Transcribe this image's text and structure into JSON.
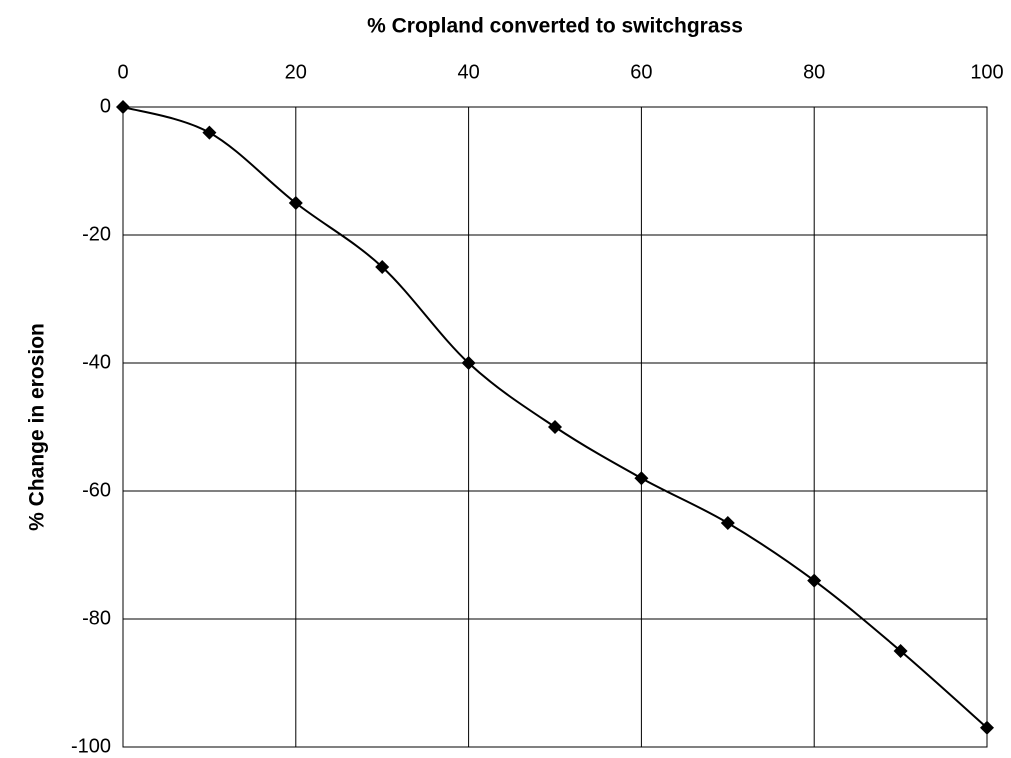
{
  "chart_data": {
    "type": "line",
    "xlabel": "% Cropland converted to switchgrass",
    "ylabel": "% Change in erosion",
    "x": [
      0,
      10,
      20,
      30,
      40,
      50,
      60,
      70,
      80,
      90,
      100
    ],
    "values": [
      0,
      -4,
      -15,
      -25,
      -40,
      -50,
      -58,
      -65,
      -74,
      -85,
      -97
    ],
    "color": "#000000",
    "xlim": [
      0,
      100
    ],
    "xticks": [
      0,
      20,
      40,
      60,
      80,
      100
    ],
    "ylim": [
      -100,
      0
    ],
    "yticks": [
      0,
      -20,
      -40,
      -60,
      -80,
      -100
    ],
    "grid": true,
    "x_axis_position": "top",
    "smooth": true
  }
}
